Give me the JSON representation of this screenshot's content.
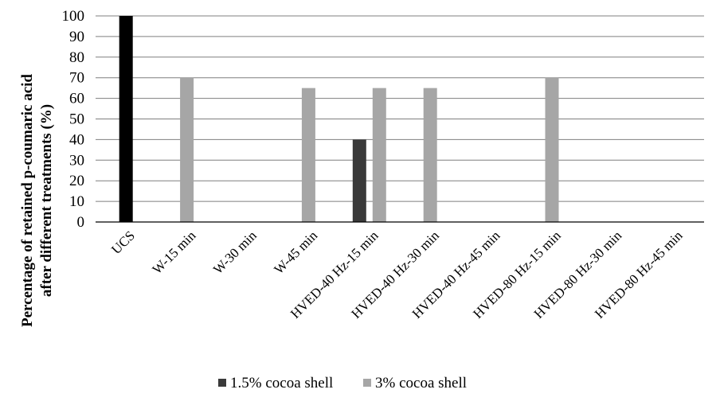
{
  "chart_data": {
    "type": "bar",
    "title": "",
    "xlabel": "",
    "ylabel_lines": [
      "Percentage of retained p-coumaric acid",
      "after different treatments (%)"
    ],
    "ylim": [
      0,
      100
    ],
    "yticks": [
      0,
      10,
      20,
      30,
      40,
      50,
      60,
      70,
      80,
      90,
      100
    ],
    "grid": true,
    "legend_position": "bottom",
    "categories": [
      "UCS",
      "W-15 min",
      "W-30 min",
      "W-45 min",
      "HVED-40 Hz-15 min",
      "HVED-40 Hz-30 min",
      "HVED-40 Hz-45 min",
      "HVED-80 Hz-15 min",
      "HVED-80 Hz-30 min",
      "HVED-80 Hz-45 min"
    ],
    "series": [
      {
        "name": "1.5% cocoa shell",
        "color": "#3a3a3a",
        "values": [
          100,
          0,
          0,
          0,
          40,
          0,
          0,
          0,
          0,
          0
        ]
      },
      {
        "name": "3% cocoa shell",
        "color": "#a6a6a6",
        "values": [
          0,
          70,
          0,
          65,
          65,
          65,
          0,
          70,
          0,
          0
        ]
      }
    ],
    "highlight": {
      "category_index": 0,
      "color": "#000000"
    }
  }
}
